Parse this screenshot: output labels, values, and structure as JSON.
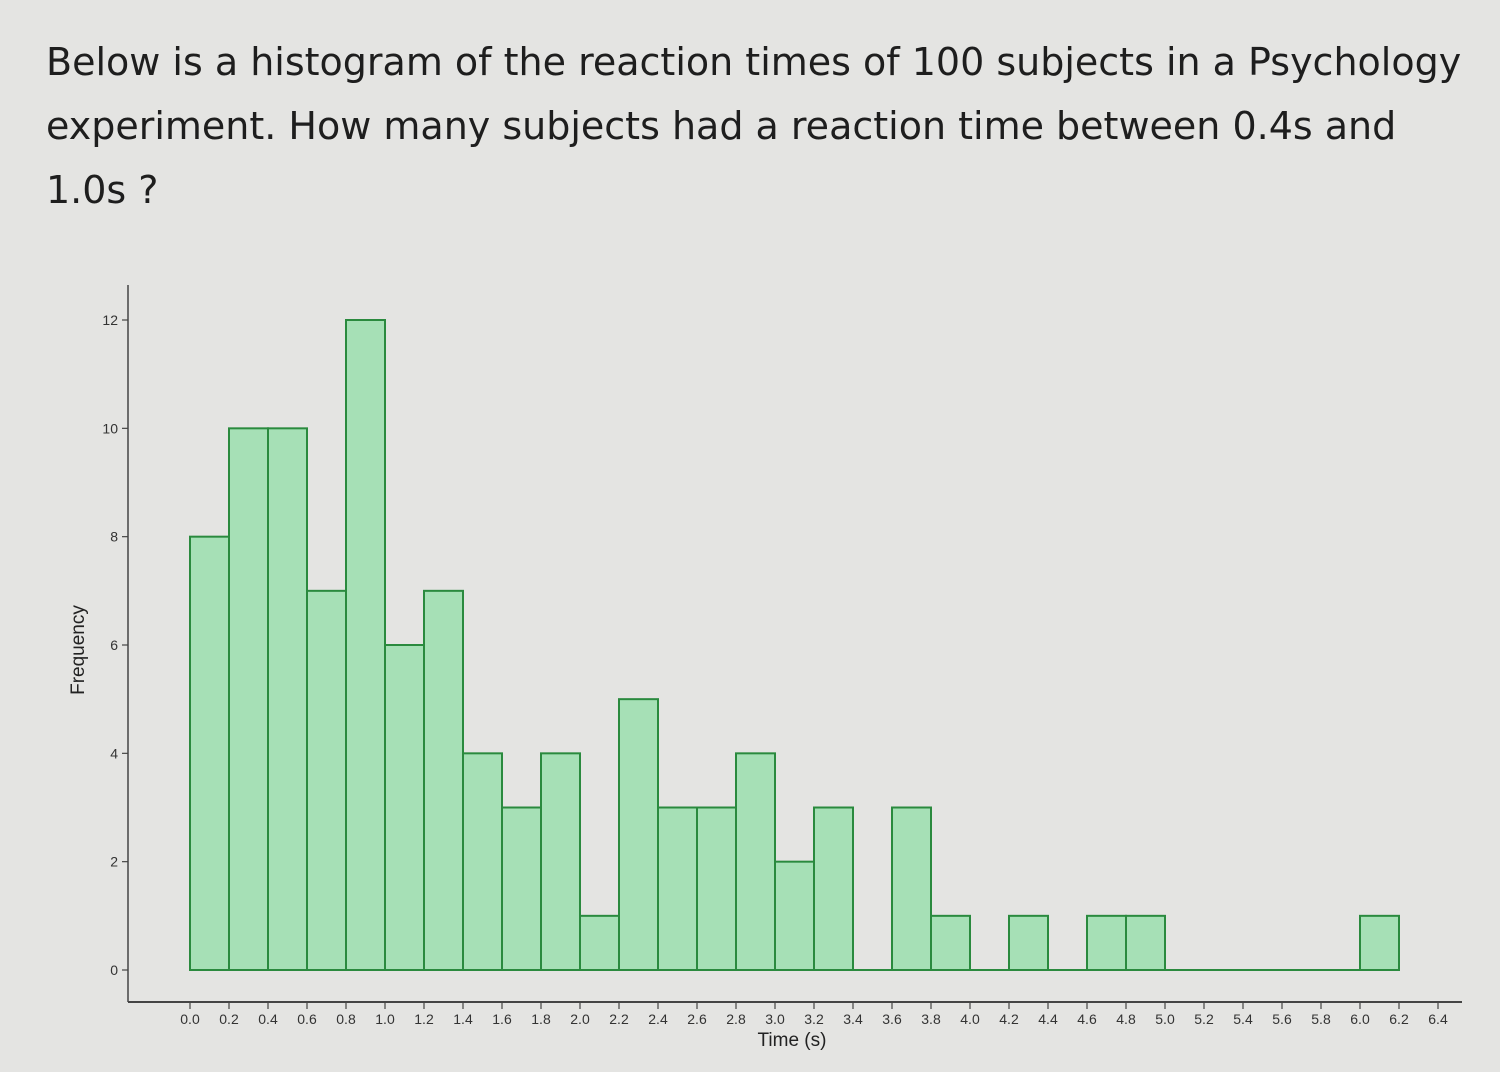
{
  "question": {
    "line1": "Below is a histogram of the reaction times of 100 subjects in a Psychology",
    "line2": "experiment. How many subjects had a reaction time between 0.4s and 1.0s ?"
  },
  "chart_data": {
    "type": "bar",
    "title": "",
    "xlabel": "Time (s)",
    "ylabel": "Frequency",
    "bin_width": 0.2,
    "bins_start": [
      0.0,
      0.2,
      0.4,
      0.6,
      0.8,
      1.0,
      1.2,
      1.4,
      1.6,
      1.8,
      2.0,
      2.2,
      2.4,
      2.6,
      2.8,
      3.0,
      3.2,
      3.4,
      3.6,
      3.8,
      4.0,
      4.2,
      4.4,
      4.6,
      4.8,
      5.0,
      5.2,
      5.4,
      5.6,
      5.8,
      6.0
    ],
    "values": [
      8,
      10,
      10,
      7,
      12,
      6,
      7,
      4,
      3,
      4,
      1,
      5,
      3,
      3,
      4,
      2,
      3,
      0,
      3,
      1,
      0,
      1,
      0,
      1,
      1,
      0,
      0,
      0,
      0,
      0,
      1
    ],
    "xlim": [
      0,
      6.4
    ],
    "ylim": [
      0,
      12
    ],
    "x_ticks": [
      "0.0",
      "0.2",
      "0.4",
      "0.6",
      "0.8",
      "1.0",
      "1.2",
      "1.4",
      "1.6",
      "1.8",
      "2.0",
      "2.2",
      "2.4",
      "2.6",
      "2.8",
      "3.0",
      "3.2",
      "3.4",
      "3.6",
      "3.8",
      "4.0",
      "4.2",
      "4.4",
      "4.6",
      "4.8",
      "5.0",
      "5.2",
      "5.4",
      "5.6",
      "5.8",
      "6.0",
      "6.2",
      "6.4"
    ],
    "y_ticks": [
      "0",
      "2",
      "4",
      "6",
      "8",
      "10",
      "12"
    ],
    "grid": false,
    "bar_fill": "#a6e0b6",
    "bar_stroke": "#2a8a3e",
    "axis_color": "#444444"
  }
}
